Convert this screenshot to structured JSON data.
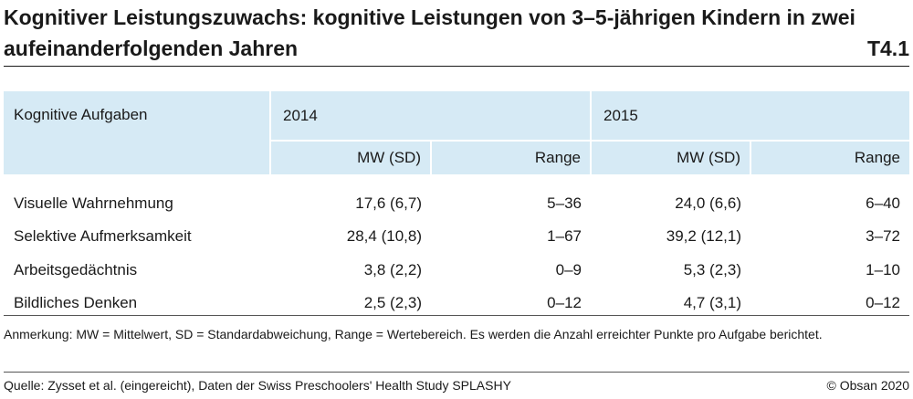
{
  "title": {
    "line1": "Kognitiver Leistungszuwachs: kognitive Leistungen von 3–5-jährigen Kindern in zwei",
    "line2": "aufeinanderfolgenden Jahren",
    "table_id": "T4.1"
  },
  "table": {
    "first_column_header": "Kognitive Aufgaben",
    "groups": [
      "2014",
      "2015"
    ],
    "subheaders": [
      "MW (SD)",
      "Range",
      "MW (SD)",
      "Range"
    ],
    "rows": [
      {
        "task": "Visuelle Wahrnehmung",
        "cells": [
          "17,6 (6,7)",
          "5–36",
          "24,0 (6,6)",
          "6–40"
        ]
      },
      {
        "task": "Selektive Aufmerksamkeit",
        "cells": [
          "28,4 (10,8)",
          "1–67",
          "39,2 (12,1)",
          "3–72"
        ]
      },
      {
        "task": "Arbeitsgedächtnis",
        "cells": [
          "3,8 (2,2)",
          "0–9",
          "5,3 (2,3)",
          "1–10"
        ]
      },
      {
        "task": "Bildliches Denken",
        "cells": [
          "2,5 (2,3)",
          "0–12",
          "4,7 (3,1)",
          "0–12"
        ]
      }
    ]
  },
  "note": "Anmerkung: MW = Mittelwert, SD = Standardabweichung, Range = Wertebereich. Es werden die Anzahl erreichter Punkte pro Aufgabe berichtet.",
  "source": "Quelle: Zysset et al. (eingereicht), Daten der Swiss Preschoolers' Health Study SPLASHY",
  "copyright": "© Obsan 2020",
  "colors": {
    "header_bg": "#d6eaf5",
    "text": "#1a1a1a"
  }
}
